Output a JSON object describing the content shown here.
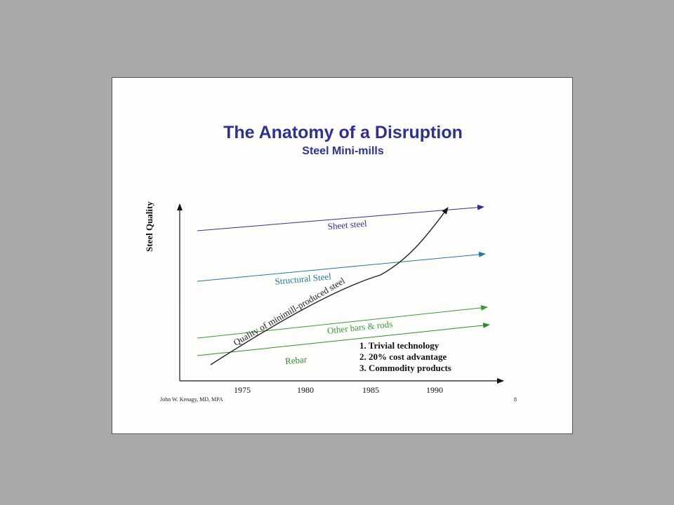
{
  "slide": {
    "title": "The Anatomy of a Disruption",
    "subtitle": "Steel Mini-mills",
    "author": "John W. Kenagy, MD, MPA",
    "page_number": "8"
  },
  "axes": {
    "y_label": "Steel Quality",
    "x_ticks": [
      "1975",
      "1980",
      "1985",
      "1990"
    ]
  },
  "market_tiers": [
    {
      "label": "Sheet steel",
      "color": "#2e3192"
    },
    {
      "label": "Structural Steel",
      "color": "#1f7a9c"
    },
    {
      "label": "Other bars & rods",
      "color": "#3a9a3a"
    },
    {
      "label": "Rebar",
      "color": "#2f8a2f"
    }
  ],
  "trajectory": {
    "label": "Quality of minimill-produced steel",
    "color": "#222222"
  },
  "key_factors": [
    "1. Trivial technology",
    "2. 20% cost advantage",
    "3. Commodity products"
  ]
}
